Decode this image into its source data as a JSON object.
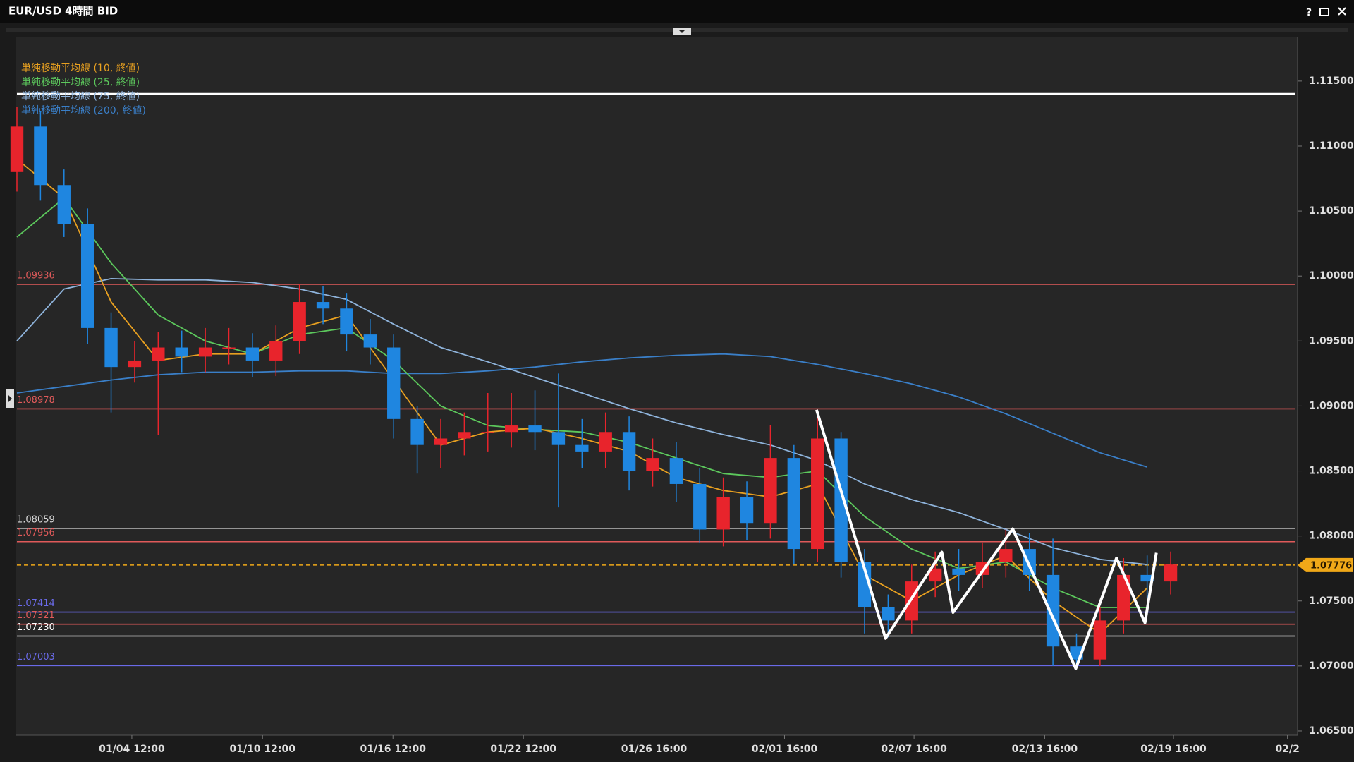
{
  "window": {
    "title": "EUR/USD 4時間 BID",
    "help": "?"
  },
  "chart_data": {
    "type": "candlestick",
    "up_color": "#e8242c",
    "down_color": "#1f86e0",
    "grid": false,
    "xlim": [
      0,
      54.3
    ],
    "xticks": [
      {
        "value": 4.88,
        "label": "01/04 12:00"
      },
      {
        "value": 10.43,
        "label": "01/10 12:00"
      },
      {
        "value": 15.97,
        "label": "01/16 12:00"
      },
      {
        "value": 21.51,
        "label": "01/22 12:00"
      },
      {
        "value": 27.06,
        "label": "01/26 16:00"
      },
      {
        "value": 32.6,
        "label": "02/01 16:00"
      },
      {
        "value": 38.1,
        "label": "02/07 16:00"
      },
      {
        "value": 43.65,
        "label": "02/13 16:00"
      },
      {
        "value": 49.12,
        "label": "02/19 16:00"
      },
      {
        "value": 53.96,
        "label": "02/2"
      }
    ],
    "ylim": [
      1.06489,
      1.11825
    ],
    "yticks": [
      {
        "value": 1.065,
        "label": "1.06500"
      },
      {
        "value": 1.07,
        "label": "1.07000"
      },
      {
        "value": 1.075,
        "label": "1.07500"
      },
      {
        "value": 1.08,
        "label": "1.08000"
      },
      {
        "value": 1.085,
        "label": "1.08500"
      },
      {
        "value": 1.09,
        "label": "1.09000"
      },
      {
        "value": 1.095,
        "label": "1.09500"
      },
      {
        "value": 1.1,
        "label": "1.10000"
      },
      {
        "value": 1.105,
        "label": "1.10500"
      },
      {
        "value": 1.11,
        "label": "1.11000"
      },
      {
        "value": 1.115,
        "label": "1.11500"
      }
    ],
    "x": [
      0,
      1,
      2,
      3,
      4,
      5,
      6,
      7,
      8,
      9,
      10,
      11,
      12,
      13,
      14,
      15,
      16,
      17,
      18,
      19,
      20,
      21,
      22,
      23,
      24,
      25,
      26,
      27,
      28,
      29,
      30,
      31,
      32,
      33,
      34,
      35,
      36,
      37,
      38,
      39,
      40,
      41,
      42,
      43,
      44,
      45,
      46,
      47,
      48,
      49
    ],
    "open": [
      1.108,
      1.1115,
      1.107,
      1.104,
      1.096,
      1.093,
      1.0935,
      1.0945,
      1.0938,
      1.0945,
      1.0945,
      1.0935,
      1.095,
      1.098,
      1.0975,
      1.0955,
      1.0945,
      1.089,
      1.087,
      1.0875,
      1.088,
      1.088,
      1.0885,
      1.088,
      1.087,
      1.0865,
      1.088,
      1.085,
      1.086,
      1.084,
      1.0805,
      1.083,
      1.081,
      1.086,
      1.079,
      1.0875,
      1.078,
      1.0745,
      1.0735,
      1.0765,
      1.0775,
      1.077,
      1.078,
      1.079,
      1.077,
      1.0715,
      1.0705,
      1.0735,
      1.077,
      1.0765
    ],
    "high": [
      1.113,
      1.1127,
      1.1082,
      1.1052,
      1.0972,
      1.095,
      1.0957,
      1.0958,
      1.096,
      1.096,
      1.0956,
      1.0962,
      1.0994,
      1.0992,
      1.0987,
      1.0967,
      1.0955,
      1.09,
      1.089,
      1.0895,
      1.091,
      1.091,
      1.0912,
      1.0925,
      1.089,
      1.0895,
      1.0892,
      1.0875,
      1.0872,
      1.0852,
      1.0845,
      1.0842,
      1.0885,
      1.087,
      1.0895,
      1.088,
      1.079,
      1.0755,
      1.0778,
      1.0788,
      1.079,
      1.0795,
      1.0805,
      1.0802,
      1.0798,
      1.0725,
      1.0745,
      1.0783,
      1.0785,
      1.0788
    ],
    "low": [
      1.1065,
      1.1058,
      1.103,
      1.0948,
      1.0895,
      1.0918,
      1.0878,
      1.0926,
      1.0926,
      1.0932,
      1.0922,
      1.0923,
      1.094,
      1.0963,
      1.0942,
      1.0932,
      1.0875,
      1.0848,
      1.0852,
      1.0862,
      1.0865,
      1.0868,
      1.0866,
      1.0822,
      1.0852,
      1.0852,
      1.0835,
      1.0838,
      1.0826,
      1.0795,
      1.0792,
      1.0797,
      1.0798,
      1.0778,
      1.078,
      1.0768,
      1.0725,
      1.0722,
      1.0725,
      1.0753,
      1.0758,
      1.076,
      1.0768,
      1.0758,
      1.07,
      1.0698,
      1.07,
      1.0725,
      1.0752,
      1.0755
    ],
    "close": [
      1.1115,
      1.107,
      1.104,
      1.096,
      1.093,
      1.0935,
      1.0945,
      1.0938,
      1.0945,
      1.0945,
      1.0935,
      1.095,
      1.098,
      1.0975,
      1.0955,
      1.0945,
      1.089,
      1.087,
      1.0875,
      1.088,
      1.088,
      1.0885,
      1.088,
      1.087,
      1.0865,
      1.088,
      1.085,
      1.086,
      1.084,
      1.0805,
      1.083,
      1.081,
      1.086,
      1.079,
      1.0875,
      1.078,
      1.0745,
      1.0735,
      1.0765,
      1.0775,
      1.077,
      1.078,
      1.079,
      1.077,
      1.0715,
      1.0705,
      1.0735,
      1.077,
      1.0765,
      1.0778
    ],
    "series": [
      {
        "name": "単純移動平均線 (10, 終値)",
        "color": "#e8a020",
        "x": [
          0,
          2,
          4,
          6,
          8,
          10,
          12,
          14,
          16,
          18,
          20,
          22,
          24,
          26,
          28,
          30,
          32,
          34,
          36,
          38,
          40,
          42,
          44,
          46,
          48
        ],
        "values": [
          1.109,
          1.106,
          1.098,
          1.0935,
          1.094,
          1.094,
          1.096,
          1.097,
          1.092,
          1.087,
          1.088,
          1.0883,
          1.0875,
          1.0865,
          1.0845,
          1.0835,
          1.083,
          1.084,
          1.077,
          1.075,
          1.077,
          1.0785,
          1.075,
          1.0725,
          1.076
        ]
      },
      {
        "name": "単純移動平均線 (25, 終値)",
        "color": "#5cc85c",
        "x": [
          0,
          2,
          4,
          6,
          8,
          10,
          12,
          14,
          16,
          18,
          20,
          22,
          24,
          26,
          28,
          30,
          32,
          34,
          36,
          38,
          40,
          42,
          44,
          46,
          48
        ],
        "values": [
          1.103,
          1.106,
          1.101,
          1.097,
          1.095,
          1.094,
          1.0955,
          1.096,
          1.0935,
          1.09,
          1.0885,
          1.0882,
          1.088,
          1.0872,
          1.086,
          1.0848,
          1.0845,
          1.085,
          1.0815,
          1.079,
          1.0775,
          1.078,
          1.076,
          1.0745,
          1.0745
        ]
      },
      {
        "name": "単純移動平均線 (75, 終値)",
        "color": "#8fb4dc",
        "x": [
          0,
          2,
          4,
          6,
          8,
          10,
          12,
          14,
          16,
          18,
          20,
          22,
          24,
          26,
          28,
          30,
          32,
          34,
          36,
          38,
          40,
          42,
          44,
          46,
          48
        ],
        "values": [
          1.095,
          1.099,
          1.0998,
          1.0997,
          1.0997,
          1.0995,
          1.099,
          1.0982,
          1.0963,
          1.0945,
          1.0934,
          1.0922,
          1.091,
          1.0898,
          1.0887,
          1.0878,
          1.087,
          1.0858,
          1.084,
          1.0828,
          1.0818,
          1.0805,
          1.0791,
          1.0782,
          1.0778
        ]
      },
      {
        "name": "単純移動平均線 (200, 終値)",
        "color": "#3a7fc8",
        "x": [
          0,
          2,
          4,
          6,
          8,
          10,
          12,
          14,
          16,
          18,
          20,
          22,
          24,
          26,
          28,
          30,
          32,
          34,
          36,
          38,
          40,
          42,
          44,
          46,
          48
        ],
        "values": [
          1.091,
          1.0915,
          1.092,
          1.0924,
          1.0926,
          1.0926,
          1.0927,
          1.0927,
          1.0925,
          1.0925,
          1.0927,
          1.093,
          1.0934,
          1.0937,
          1.0939,
          1.094,
          1.0938,
          1.0932,
          1.0925,
          1.0917,
          1.0907,
          1.0894,
          1.0879,
          1.0864,
          1.0853
        ]
      }
    ],
    "levels": [
      {
        "value": 1.09936,
        "color": "#e05a5a"
      },
      {
        "value": 1.08978,
        "color": "#e05a5a"
      },
      {
        "value": 1.08059,
        "color": "#d8d8d8"
      },
      {
        "value": 1.07956,
        "color": "#e05a5a"
      },
      {
        "value": 1.07414,
        "color": "#6a6ae8"
      },
      {
        "value": 1.07321,
        "color": "#e05a5a"
      },
      {
        "value": 1.0723,
        "label": "1.07230",
        "color": "#ffffff"
      },
      {
        "value": 1.07003,
        "color": "#6a6ae8"
      }
    ],
    "reference_line": {
      "value": 1.114,
      "color": "#ffffff"
    },
    "current_price": {
      "value": 1.07776,
      "color": "#f0a818"
    },
    "zigzag": {
      "color": "#ffffff",
      "x": [
        33.96,
        36.89,
        39.28,
        39.76,
        42.29,
        44.97,
        46.7,
        47.91,
        48.39
      ],
      "values": [
        1.08971,
        1.07212,
        1.07876,
        1.07412,
        1.08055,
        1.0698,
        1.0783,
        1.07332,
        1.0787
      ]
    }
  }
}
